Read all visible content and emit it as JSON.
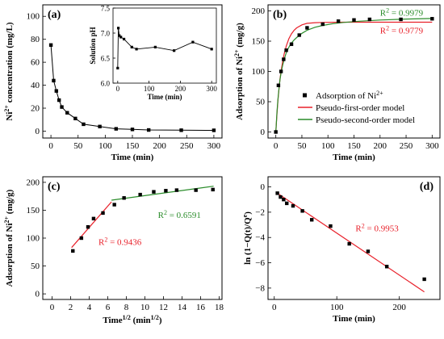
{
  "colors": {
    "fit_red": "#e8202a",
    "fit_green": "#2a8c2a",
    "marker": "#000000"
  },
  "chart_data": [
    {
      "panel": "(a)",
      "type": "line",
      "xlabel": "Time (min)",
      "ylabel": [
        "Ni",
        "2+",
        " concentration (mg/L)"
      ],
      "xlim": [
        -15,
        315
      ],
      "ylim": [
        -6,
        110
      ],
      "xticks": [
        0,
        50,
        100,
        150,
        200,
        250,
        300
      ],
      "yticks": [
        0,
        20,
        40,
        60,
        80,
        100
      ],
      "series": [
        {
          "x": [
            0,
            5,
            10,
            15,
            20,
            30,
            45,
            60,
            90,
            120,
            150,
            180,
            240,
            300
          ],
          "y": [
            75,
            44,
            35,
            27,
            21,
            16,
            11,
            6,
            4,
            2,
            1.5,
            1,
            0.8,
            0.7
          ]
        }
      ],
      "inset": {
        "type": "line",
        "xlabel": "Time (min)",
        "ylabel": "Solution pH",
        "xlim": [
          -15,
          315
        ],
        "ylim": [
          6.0,
          7.5
        ],
        "xticks": [
          0,
          100,
          200,
          300
        ],
        "yticks": [
          6.0,
          6.5,
          7.0,
          7.5
        ],
        "series": [
          {
            "x": [
              0,
              2,
              5,
              10,
              20,
              45,
              60,
              120,
              180,
              240,
              300
            ],
            "y": [
              6.3,
              7.1,
              6.95,
              6.92,
              6.88,
              6.72,
              6.68,
              6.72,
              6.65,
              6.82,
              6.68
            ]
          }
        ]
      }
    },
    {
      "panel": "(b)",
      "type": "scatter",
      "xlabel": "Time (min)",
      "ylabel": [
        "Adsorption of Ni",
        "2+",
        " (mg/g)"
      ],
      "xlim": [
        -15,
        315
      ],
      "ylim": [
        -10,
        210
      ],
      "xticks": [
        0,
        50,
        100,
        150,
        200,
        250,
        300
      ],
      "yticks": [
        0,
        50,
        100,
        150,
        200
      ],
      "series": [
        {
          "name": [
            "Adsorption of Ni",
            "2+"
          ],
          "style": "markers",
          "x": [
            0,
            5,
            10,
            15,
            20,
            30,
            45,
            60,
            90,
            120,
            150,
            180,
            240,
            300
          ],
          "y": [
            0,
            77,
            100,
            120,
            135,
            145,
            160,
            172,
            178,
            183,
            185,
            186,
            186,
            187
          ]
        },
        {
          "name": "Pseudo-first-order model",
          "style": "line",
          "color": "#e8202a",
          "x": [
            0,
            2,
            4,
            6,
            8,
            10,
            13,
            16,
            20,
            25,
            30,
            35,
            40,
            50,
            60,
            75,
            90,
            110,
            130,
            160,
            200,
            250,
            300
          ],
          "y": [
            0,
            28,
            52,
            71,
            87,
            100,
            116,
            129,
            142,
            154,
            162,
            168,
            172,
            177,
            179.5,
            180.5,
            181,
            181.2,
            181.3,
            181.3,
            181.3,
            181.3,
            181.3
          ]
        },
        {
          "name": "Pseudo-second-order model",
          "style": "line",
          "color": "#2a8c2a",
          "x": [
            0,
            2,
            4,
            6,
            8,
            10,
            13,
            16,
            20,
            25,
            30,
            35,
            40,
            50,
            60,
            75,
            90,
            110,
            130,
            160,
            200,
            250,
            300
          ],
          "y": [
            0,
            31,
            54,
            72,
            86,
            97,
            110,
            120,
            131,
            140,
            147,
            152,
            156,
            163,
            168,
            173,
            176,
            179,
            181,
            183,
            185,
            186.5,
            187.5
          ]
        }
      ],
      "annotations": [
        {
          "text": "R",
          "sup": "2",
          "rest": " = 0.9979",
          "color": "#2a8c2a",
          "x": 200,
          "y": 192
        },
        {
          "text": "R",
          "sup": "2",
          "rest": " = 0.9779",
          "color": "#e8202a",
          "x": 200,
          "y": 163
        }
      ],
      "legend": "bottom-right"
    },
    {
      "panel": "(c)",
      "type": "scatter",
      "xlabel": [
        "Time",
        "1/2",
        " (min",
        "1/2",
        ")"
      ],
      "ylabel": [
        "Adsorption of Ni",
        "2+",
        " (mg/g)"
      ],
      "xlim": [
        -1,
        18.3
      ],
      "ylim": [
        -10,
        210
      ],
      "xticks": [
        0,
        2,
        4,
        6,
        8,
        10,
        12,
        14,
        16,
        18
      ],
      "yticks": [
        0,
        50,
        100,
        150,
        200
      ],
      "series": [
        {
          "style": "markers",
          "x": [
            2.24,
            3.16,
            3.87,
            4.47,
            5.48,
            6.71,
            7.75,
            9.49,
            10.95,
            12.25,
            13.42,
            15.49,
            17.32
          ],
          "y": [
            77,
            100,
            120,
            135,
            145,
            160,
            172,
            178,
            183,
            185,
            186,
            186,
            187
          ]
        },
        {
          "style": "line",
          "color": "#e8202a",
          "x": [
            2.1,
            6.4
          ],
          "y": [
            83,
            165
          ]
        },
        {
          "style": "line",
          "color": "#2a8c2a",
          "x": [
            6.4,
            17.4
          ],
          "y": [
            168,
            193
          ]
        }
      ],
      "annotations": [
        {
          "text": "R",
          "sup": "2",
          "rest": " = 0.9436",
          "color": "#e8202a",
          "x": 5.0,
          "y": 88
        },
        {
          "text": "R",
          "sup": "2",
          "rest": " = 0.6591",
          "color": "#2a8c2a",
          "x": 11.4,
          "y": 136
        }
      ]
    },
    {
      "panel": "(d)",
      "type": "scatter",
      "xlabel": "Time (min)",
      "ylabel": [
        "ln (1−Q(t)/Q",
        "e",
        ")"
      ],
      "xlim": [
        -10,
        265
      ],
      "ylim": [
        -8.9,
        0.8
      ],
      "xticks": [
        0,
        100,
        200
      ],
      "yticks": [
        0,
        -2,
        -4,
        -6,
        -8
      ],
      "series": [
        {
          "style": "markers",
          "x": [
            5,
            10,
            15,
            20,
            30,
            45,
            60,
            90,
            120,
            150,
            180,
            240
          ],
          "y": [
            -0.5,
            -0.8,
            -1.0,
            -1.3,
            -1.5,
            -1.9,
            -2.6,
            -3.1,
            -4.5,
            -5.1,
            -6.3,
            -7.3
          ]
        },
        {
          "style": "line",
          "color": "#e8202a",
          "x": [
            5,
            240
          ],
          "y": [
            -0.5,
            -8.3
          ]
        }
      ],
      "annotations": [
        {
          "text": "R",
          "sup": "2",
          "rest": " = 0.9953",
          "color": "#e8202a",
          "x": 130,
          "y": -3.5
        }
      ]
    }
  ]
}
